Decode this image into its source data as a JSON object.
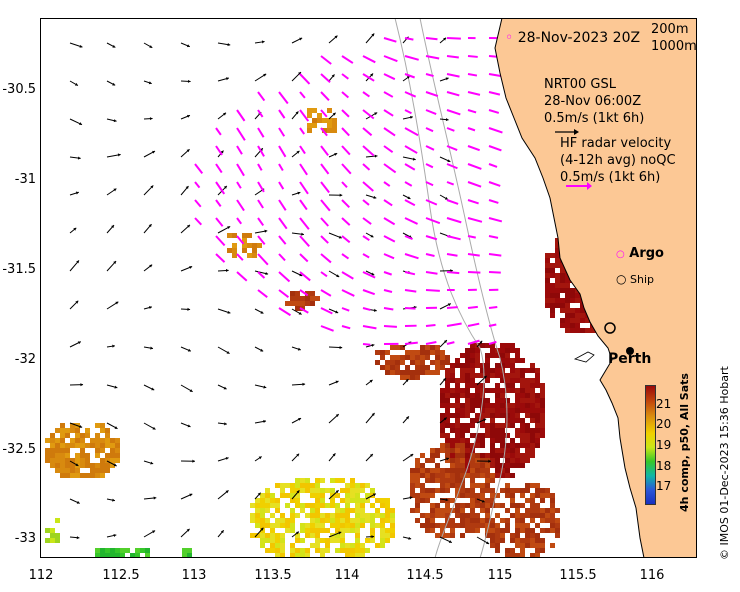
{
  "map": {
    "x_ticks": [
      "112",
      "112.5",
      "113",
      "113.5",
      "114",
      "114.5",
      "115",
      "115.5",
      "116"
    ],
    "y_ticks": [
      "-30.5",
      "-31",
      "-31.5",
      "-32",
      "-32.5",
      "-33"
    ],
    "x_range": [
      112,
      116.3
    ],
    "y_range": [
      -33.1,
      -30.1
    ],
    "date_label": "28-Nov-2023 20Z",
    "depth_200": "200m",
    "depth_1000": "1000m",
    "model_label": "NRT00 GSL",
    "model_time": "28-Nov 06:00Z",
    "model_scale": "0.5m/s (1kt 6h)",
    "hf_line1": "HF radar velocity",
    "hf_line2": "(4-12h avg) noQC",
    "hf_scale": "0.5m/s (1kt 6h)",
    "argo_label": "Argo",
    "ship_label": "Ship",
    "city_label": "Perth",
    "colorbar_ticks": [
      "21",
      "20",
      "19",
      "18",
      "17"
    ],
    "colorbar_title": "4h comp, p50, All Sats",
    "credit": "© IMOS 01-Dec-2023 15:36 Hobart",
    "colors": {
      "land": "#fcc895",
      "hf_vectors": "#ff00ff",
      "sst_warm": "#9b0a0a"
    }
  }
}
